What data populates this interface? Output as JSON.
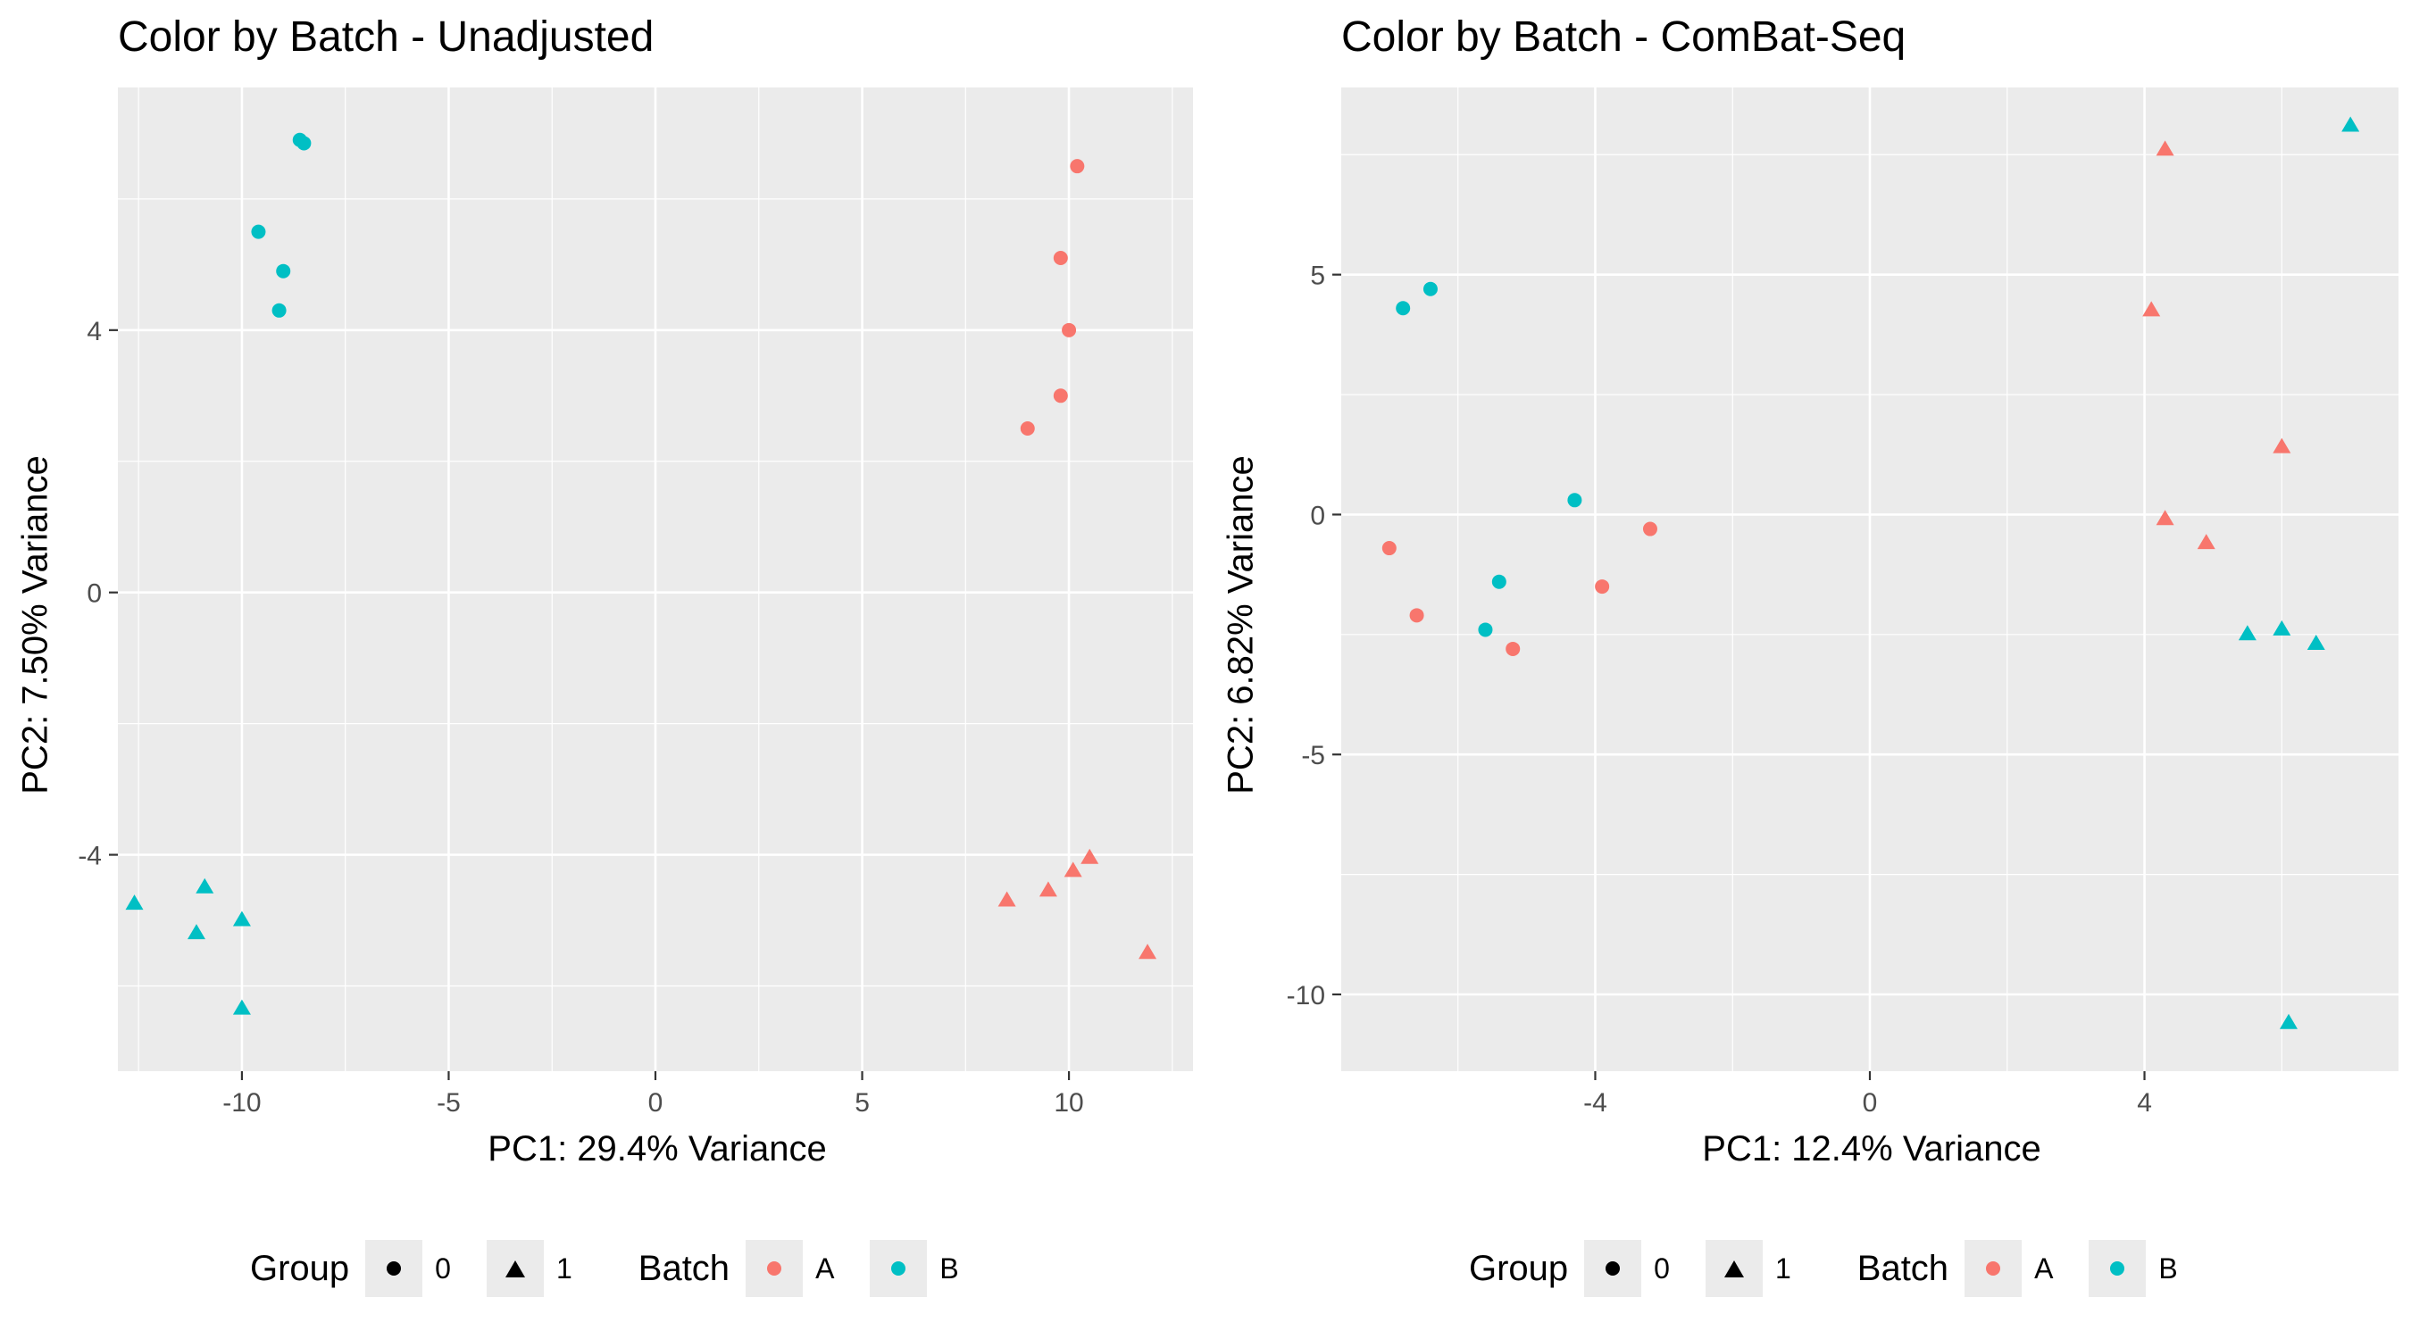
{
  "chart_data": [
    {
      "type": "scatter",
      "title": "Color by Batch - Unadjusted",
      "xlabel": "PC1: 29.4% Variance",
      "ylabel": "PC2: 7.50% Variance",
      "xlim": [
        -13.0,
        13.0
      ],
      "ylim": [
        -7.3,
        7.7
      ],
      "xticks": [
        -10,
        -5,
        0,
        5,
        10
      ],
      "xtick_labels": [
        "-10",
        "-5",
        "0",
        "5",
        "10"
      ],
      "yticks": [
        -4,
        0,
        4
      ],
      "ytick_labels": [
        "-4",
        "0",
        "4"
      ],
      "grid": true,
      "legend_position": "bottom",
      "series": [
        {
          "name": "Batch A, Group 0",
          "batch": "A",
          "group": "0",
          "color": "#F8766D",
          "shape": "circle",
          "x": [
            10.2,
            9.8,
            10.0,
            9.8,
            9.0
          ],
          "y": [
            6.5,
            5.1,
            4.0,
            3.0,
            2.5
          ]
        },
        {
          "name": "Batch B, Group 0",
          "batch": "B",
          "group": "0",
          "color": "#00BFC4",
          "shape": "circle",
          "x": [
            -8.6,
            -8.5,
            -9.6,
            -9.0,
            -9.1
          ],
          "y": [
            6.9,
            6.85,
            5.5,
            4.9,
            4.3
          ]
        },
        {
          "name": "Batch A, Group 1",
          "batch": "A",
          "group": "1",
          "color": "#F8766D",
          "shape": "triangle",
          "x": [
            10.5,
            10.1,
            9.5,
            8.5,
            11.9
          ],
          "y": [
            -4.05,
            -4.25,
            -4.55,
            -4.7,
            -5.5
          ]
        },
        {
          "name": "Batch B, Group 1",
          "batch": "B",
          "group": "1",
          "color": "#00BFC4",
          "shape": "triangle",
          "x": [
            -12.6,
            -10.9,
            -11.1,
            -10.0,
            -10.0
          ],
          "y": [
            -4.75,
            -4.5,
            -5.2,
            -5.0,
            -6.35
          ]
        }
      ]
    },
    {
      "type": "scatter",
      "title": "Color by Batch - ComBat-Seq",
      "xlabel": "PC1: 12.4% Variance",
      "ylabel": "PC2: 6.82% Variance",
      "xlim": [
        -7.7,
        7.7
      ],
      "ylim": [
        -11.6,
        8.9
      ],
      "xticks": [
        -4,
        0,
        4
      ],
      "xtick_labels": [
        "-4",
        "0",
        "4"
      ],
      "yticks": [
        -10,
        -5,
        0,
        5
      ],
      "ytick_labels": [
        "-10",
        "-5",
        "0",
        "5"
      ],
      "grid": true,
      "legend_position": "bottom",
      "series": [
        {
          "name": "Batch A, Group 0",
          "batch": "A",
          "group": "0",
          "color": "#F8766D",
          "shape": "circle",
          "x": [
            -7.0,
            -6.6,
            -5.2,
            -3.9,
            -3.2
          ],
          "y": [
            -0.7,
            -2.1,
            -2.8,
            -1.5,
            -0.3
          ]
        },
        {
          "name": "Batch B, Group 0",
          "batch": "B",
          "group": "0",
          "color": "#00BFC4",
          "shape": "circle",
          "x": [
            -6.8,
            -6.4,
            -4.3,
            -5.4,
            -5.6
          ],
          "y": [
            4.3,
            4.7,
            0.3,
            -1.4,
            -2.4
          ]
        },
        {
          "name": "Batch A, Group 1",
          "batch": "A",
          "group": "1",
          "color": "#F8766D",
          "shape": "triangle",
          "x": [
            4.3,
            4.1,
            6.0,
            4.3,
            4.9
          ],
          "y": [
            7.6,
            4.25,
            1.4,
            -0.1,
            -0.6
          ]
        },
        {
          "name": "Batch B, Group 1",
          "batch": "B",
          "group": "1",
          "color": "#00BFC4",
          "shape": "triangle",
          "x": [
            7.0,
            5.5,
            6.0,
            6.5,
            6.1
          ],
          "y": [
            8.1,
            -2.5,
            -2.4,
            -2.7,
            -10.6
          ]
        }
      ]
    }
  ],
  "legend": {
    "group_title": "Group",
    "group_items": [
      "0",
      "1"
    ],
    "batch_title": "Batch",
    "batch_items": [
      {
        "label": "A",
        "color": "#F8766D"
      },
      {
        "label": "B",
        "color": "#00BFC4"
      }
    ]
  }
}
